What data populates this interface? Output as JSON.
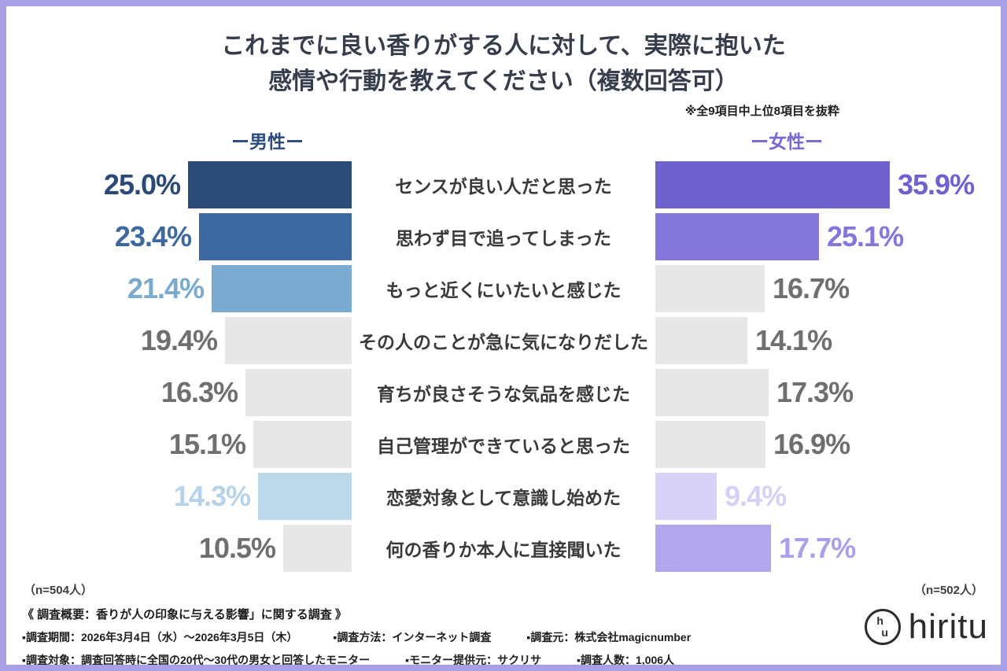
{
  "page": {
    "title_line1": "これまでに良い香りがする人に対して、実際に抱いた",
    "title_line2": "感情や行動を教えてください（複数回答可）",
    "note": "※全9項目中上位8項目を抜粋",
    "left_header": "ー男性ー",
    "right_header": "ー女性ー",
    "left_n": "（n=504人）",
    "right_n": "（n=502人）"
  },
  "chart_data": {
    "type": "bar",
    "orientation": "horizontal-butterfly",
    "unit": "%",
    "title": "これまでに良い香りがする人に対して、実際に抱いた感情や行動を教えてください（複数回答可）",
    "note": "※全9項目中上位8項目を抜粋",
    "xlim": [
      0,
      36
    ],
    "categories": [
      "センスが良い人だと思った",
      "思わず目で追ってしまった",
      "もっと近くにいたいと感じた",
      "その人のことが急に気になりだした",
      "育ちが良さそうな気品を感じた",
      "自己管理ができていると思った",
      "恋愛対象として意識し始めた",
      "何の香りか本人に直接聞いた"
    ],
    "series": [
      {
        "name": "男性",
        "n": 504,
        "values": [
          25.0,
          23.4,
          21.4,
          19.4,
          16.3,
          15.1,
          14.3,
          10.5
        ]
      },
      {
        "name": "女性",
        "n": 502,
        "values": [
          35.9,
          25.1,
          16.7,
          14.1,
          17.3,
          16.9,
          9.4,
          17.7
        ]
      }
    ],
    "rows": [
      {
        "label": "センスが良い人だと思った",
        "men_label": "25.0%",
        "men_value": 25.0,
        "men_bar_color": "#2a4a77",
        "men_text_color": "#2a4a77",
        "women_label": "35.9%",
        "women_value": 35.9,
        "women_bar_color": "#6e62ce",
        "women_text_color": "#6e62ce"
      },
      {
        "label": "思わず目で追ってしまった",
        "men_label": "23.4%",
        "men_value": 23.4,
        "men_bar_color": "#3e68a0",
        "men_text_color": "#3e68a0",
        "women_label": "25.1%",
        "women_value": 25.1,
        "women_bar_color": "#8377dc",
        "women_text_color": "#8377dc"
      },
      {
        "label": "もっと近くにいたいと感じた",
        "men_label": "21.4%",
        "men_value": 21.4,
        "men_bar_color": "#79aacf",
        "men_text_color": "#79aacf",
        "women_label": "16.7%",
        "women_value": 16.7,
        "women_bar_color": "#e7e7e7",
        "women_text_color": "#6f6f6f"
      },
      {
        "label": "その人のことが急に気になりだした",
        "men_label": "19.4%",
        "men_value": 19.4,
        "men_bar_color": "#e7e7e7",
        "men_text_color": "#6f6f6f",
        "women_label": "14.1%",
        "women_value": 14.1,
        "women_bar_color": "#e7e7e7",
        "women_text_color": "#6f6f6f"
      },
      {
        "label": "育ちが良さそうな気品を感じた",
        "men_label": "16.3%",
        "men_value": 16.3,
        "men_bar_color": "#e7e7e7",
        "men_text_color": "#6f6f6f",
        "women_label": "17.3%",
        "women_value": 17.3,
        "women_bar_color": "#e7e7e7",
        "women_text_color": "#6f6f6f"
      },
      {
        "label": "自己管理ができていると思った",
        "men_label": "15.1%",
        "men_value": 15.1,
        "men_bar_color": "#e7e7e7",
        "men_text_color": "#6f6f6f",
        "women_label": "16.9%",
        "women_value": 16.9,
        "women_bar_color": "#e7e7e7",
        "women_text_color": "#6f6f6f"
      },
      {
        "label": "恋愛対象として意識し始めた",
        "men_label": "14.3%",
        "men_value": 14.3,
        "men_bar_color": "#bcd9ec",
        "men_text_color": "#b7d3e9",
        "women_label": "9.4%",
        "women_value": 9.4,
        "women_bar_color": "#d9d2f7",
        "women_text_color": "#d7cff6"
      },
      {
        "label": "何の香りか本人に直接聞いた",
        "men_label": "10.5%",
        "men_value": 10.5,
        "men_bar_color": "#e7e7e7",
        "men_text_color": "#6f6f6f",
        "women_label": "17.7%",
        "women_value": 17.7,
        "women_bar_color": "#b2a6ee",
        "women_text_color": "#ab9eed"
      }
    ]
  },
  "footer": {
    "survey_title": "《 調査概要：香りが人の印象に与える影響」に関する調査 》",
    "meta_line1": [
      "▪調査期間：2026年3月4日（水）〜2026年3月5日（木）",
      "▪調査方法：インターネット調査",
      "▪調査元：株式会社magicnumber"
    ],
    "meta_line2": [
      "▪調査対象：調査回答時に全国の20代〜30代の男女と回答したモニター",
      "▪モニター提供元：サクリサ",
      "▪調査人数：1,006人"
    ]
  },
  "logo": {
    "mark_top": "h",
    "mark_bottom": "u",
    "text": "hiritu"
  }
}
